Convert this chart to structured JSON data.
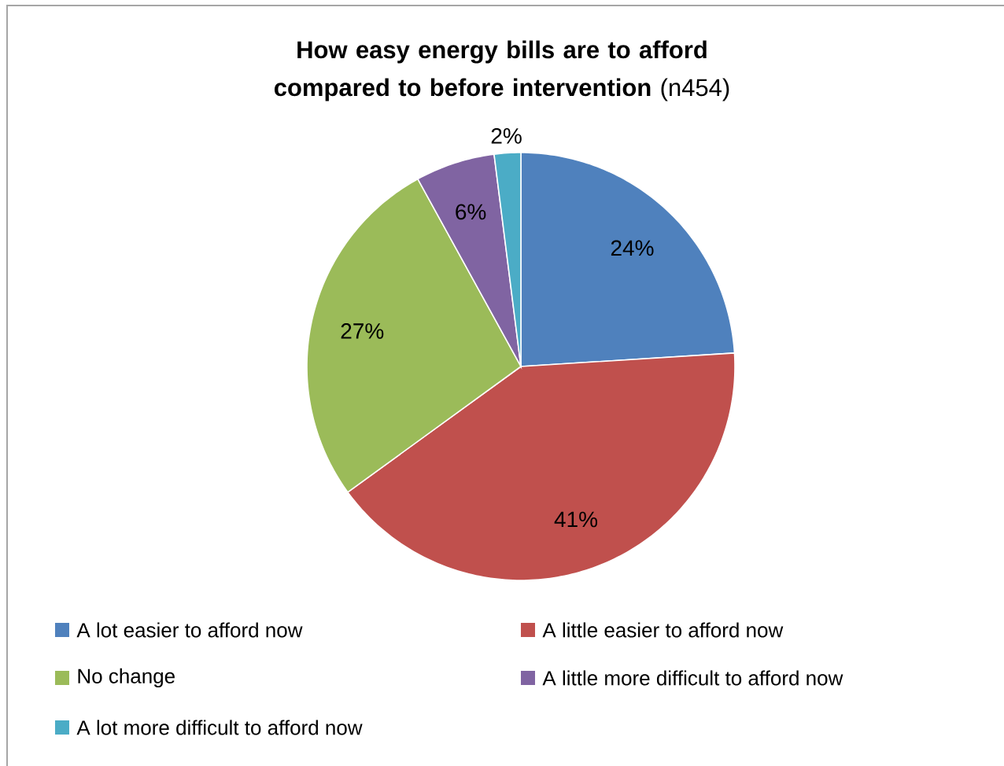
{
  "chart_data": {
    "type": "pie",
    "title": "**How easy energy bills are to afford compared to before intervention** (n454)",
    "categories": [
      "A lot easier to afford now",
      "A little easier to afford now",
      "No change",
      "A little more difficult to afford now",
      "A lot more difficult to afford now"
    ],
    "values": [
      24,
      41,
      27,
      6,
      2
    ],
    "colors": [
      "#4f81bd",
      "#c0504d",
      "#9bbb59",
      "#8064a2",
      "#4bacc6"
    ],
    "value_labels": [
      "24%",
      "41%",
      "27%",
      "6%",
      "2%"
    ],
    "legend": "bottom"
  }
}
